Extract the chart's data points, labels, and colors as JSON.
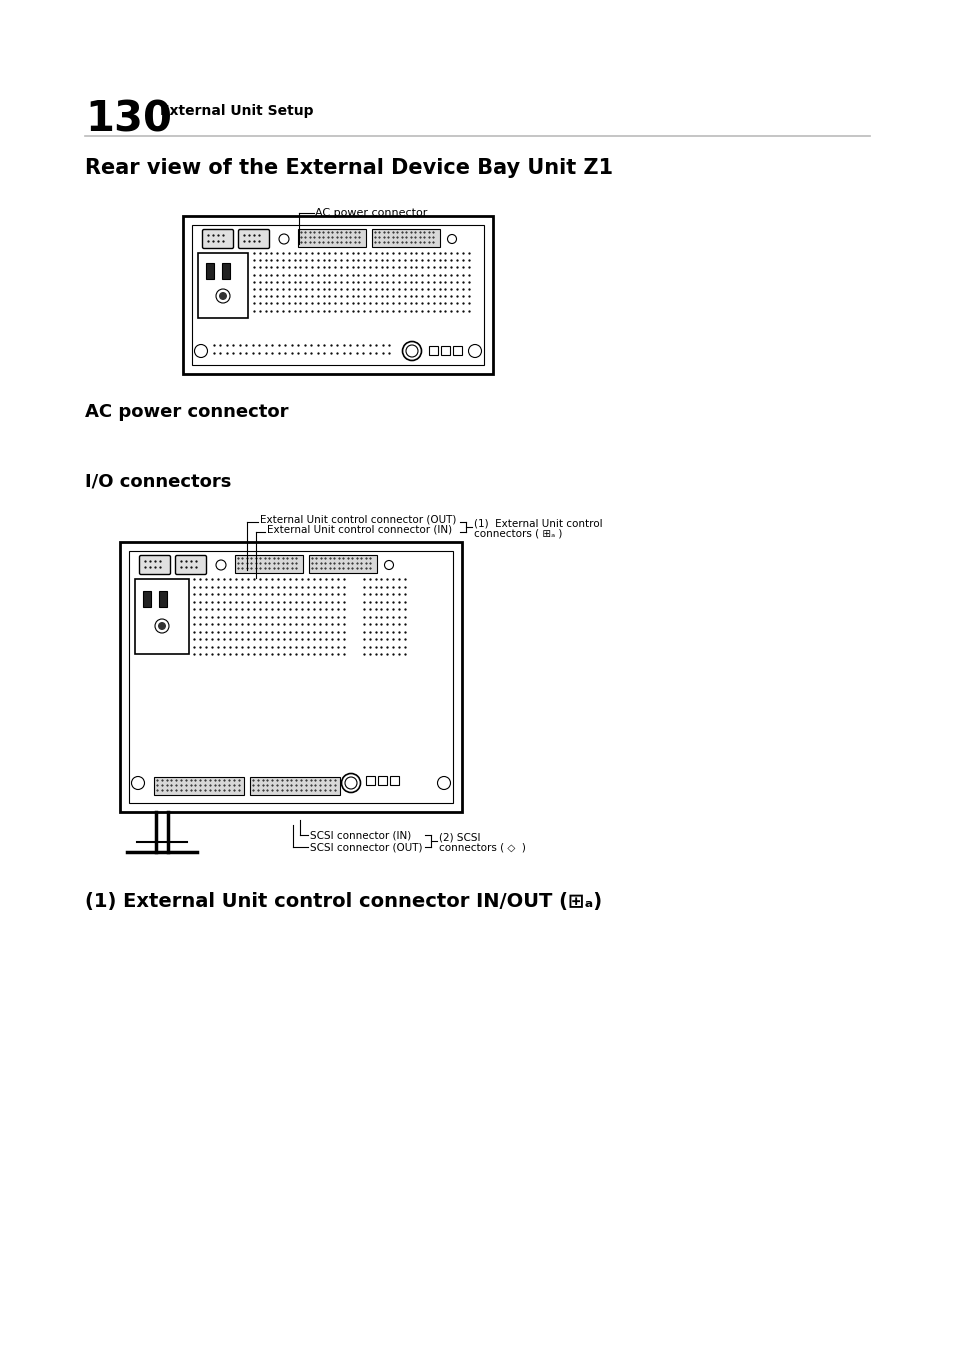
{
  "page_number": "130",
  "page_header": "External Unit Setup",
  "section_title": "Rear view of the External Device Bay Unit Z1",
  "ac_label": "AC power connector",
  "io_label": "I/O connectors",
  "bottom_section_title_plain": "(1) External Unit control connector IN/OUT",
  "diagram1_label": "AC power connector",
  "diagram2_labels": {
    "out": "External Unit control connector (OUT)",
    "in": "External Unit control connector (IN)",
    "right1_line1": "(1)  External Unit control",
    "right1_line2": "connectors ( ⊞ₐ )",
    "scsi_in": "SCSI connector (IN)",
    "scsi_out": "SCSI connector (OUT)",
    "right2_line1": "(2) SCSI",
    "right2_line2": "connectors ( ◇  )"
  },
  "bg_color": "#ffffff",
  "text_color": "#000000",
  "line_color": "#000000",
  "gray_line_color": "#bbbbbb"
}
